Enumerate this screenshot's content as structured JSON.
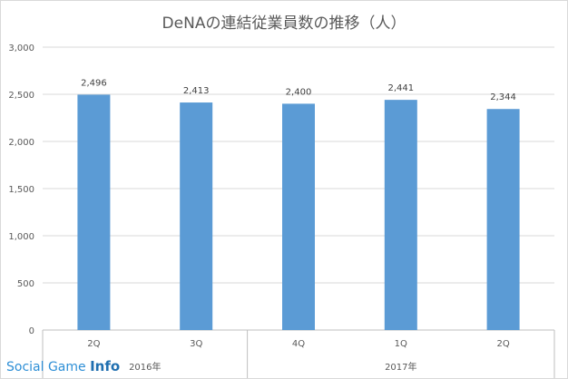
{
  "chart_data": {
    "type": "bar",
    "title": "DeNAの連結従業員数の推移（人）",
    "categories": [
      "2Q",
      "3Q",
      "4Q",
      "1Q",
      "2Q"
    ],
    "category_groups": [
      {
        "label": "2016年",
        "span": 2
      },
      {
        "label": "2017年",
        "span": 3
      }
    ],
    "values": [
      2496,
      2413,
      2400,
      2441,
      2344
    ],
    "data_labels": [
      "2,496",
      "2,413",
      "2,400",
      "2,441",
      "2,344"
    ],
    "ylim": [
      0,
      3000
    ],
    "yticks": [
      0,
      500,
      1000,
      1500,
      2000,
      2500,
      3000
    ],
    "ytick_labels": [
      "0",
      "500",
      "1,000",
      "1,500",
      "2,000",
      "2,500",
      "3,000"
    ],
    "xlabel": "",
    "ylabel": "",
    "grid": true,
    "bar_color": "#5b9bd5"
  },
  "watermark": {
    "part1": "Social Game ",
    "part2": "Info"
  }
}
